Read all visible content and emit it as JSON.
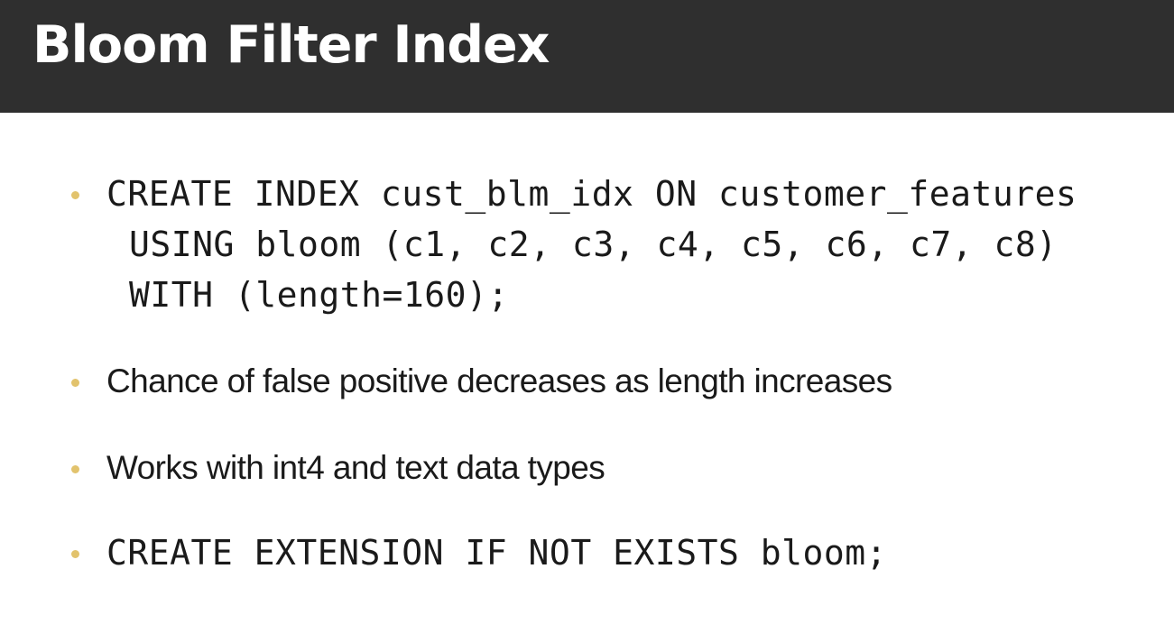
{
  "slide": {
    "title": "Bloom Filter Index",
    "bullets": [
      {
        "type": "code",
        "lines": [
          "CREATE INDEX cust_blm_idx ON customer_features",
          "USING bloom (c1, c2, c3, c4, c5, c6, c7, c8)",
          "WITH (length=160);"
        ]
      },
      {
        "type": "text",
        "text": "Chance of false positive decreases as length increases"
      },
      {
        "type": "text",
        "text": "Works with int4 and text data types"
      },
      {
        "type": "code",
        "lines": [
          "CREATE EXTENSION IF NOT EXISTS bloom;"
        ]
      }
    ]
  },
  "colors": {
    "title_bar": "#2f2f2f",
    "title_text": "#ffffff",
    "bullet": "#e2c36d",
    "body_text": "#1a1a1a",
    "background": "#ffffff"
  }
}
